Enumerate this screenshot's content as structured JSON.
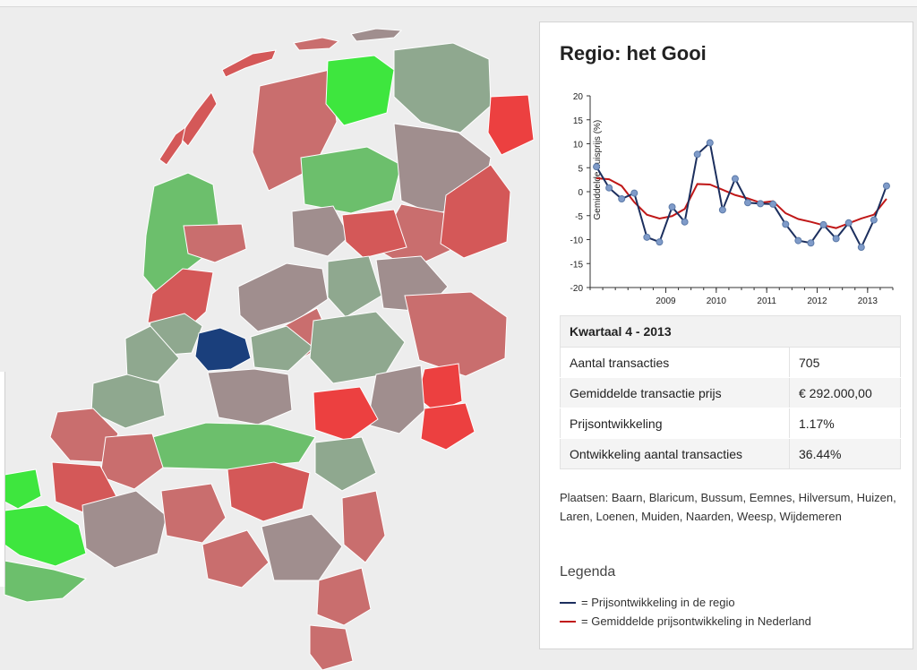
{
  "colors": {
    "decline_strong": "#d45858",
    "decline": "#c96e6e",
    "neutral": "#a08e8e",
    "grey_green": "#8fa88f",
    "rise": "#6cbf6c",
    "rise_strong": "#3ee63e",
    "drop_extreme": "#ec4040",
    "selected": "#1a3f7c",
    "regio_line": "#1c2f5e",
    "nl_line": "#c01818"
  },
  "panel": {
    "title": "Regio: het Gooi",
    "table": {
      "header": "Kwartaal 4 - 2013",
      "rows": [
        {
          "label": "Aantal transacties",
          "value": "705"
        },
        {
          "label": "Gemiddelde transactie prijs",
          "value": "€ 292.000,00"
        },
        {
          "label": "Prijsontwikkeling",
          "value": "1.17%"
        },
        {
          "label": "Ontwikkeling aantal transacties",
          "value": "36.44%"
        }
      ]
    },
    "places": "Plaatsen: Baarn, Blaricum, Bussum, Eemnes, Hilversum, Huizen, Laren, Loenen, Muiden, Naarden, Weesp, Wijdemeren",
    "legend": {
      "title": "Legenda",
      "items": [
        {
          "text": "= Prijsontwikkeling in de regio"
        },
        {
          "text": "= Gemiddelde prijsontwikkeling in Nederland"
        }
      ]
    }
  },
  "chart_data": {
    "type": "line",
    "ylabel": "Gemiddelde huisprijs (%)",
    "ylim": [
      -20,
      20
    ],
    "yticks": [
      20,
      15,
      10,
      5,
      0,
      -5,
      -10,
      -15,
      -20
    ],
    "xlim": [
      2008.0,
      2014.0
    ],
    "xticks": [
      2009,
      2010,
      2011,
      2012,
      2013
    ],
    "grid": false,
    "series": [
      {
        "key": "regio",
        "x": [
          2008.0,
          2008.25,
          2008.5,
          2008.75,
          2009.0,
          2009.25,
          2009.5,
          2009.75,
          2010.0,
          2010.25,
          2010.5,
          2010.75,
          2011.0,
          2011.25,
          2011.5,
          2011.75,
          2012.0,
          2012.25,
          2012.5,
          2012.75,
          2013.0,
          2013.25,
          2013.5,
          2013.75
        ],
        "values": [
          5.2,
          0.8,
          -1.5,
          -0.3,
          -9.5,
          -10.5,
          -3.2,
          -6.3,
          7.8,
          10.2,
          -3.8,
          2.7,
          -2.3,
          -2.5,
          -2.6,
          -6.8,
          -10.2,
          -10.7,
          -6.9,
          -9.8,
          -6.5,
          -11.6,
          -5.9,
          1.2
        ]
      },
      {
        "key": "nl",
        "x": [
          2008.0,
          2008.25,
          2008.5,
          2008.75,
          2009.0,
          2009.25,
          2009.5,
          2009.75,
          2010.0,
          2010.25,
          2010.5,
          2010.75,
          2011.0,
          2011.25,
          2011.5,
          2011.75,
          2012.0,
          2012.25,
          2012.5,
          2012.75,
          2013.0,
          2013.25,
          2013.5,
          2013.75
        ],
        "values": [
          2.8,
          2.6,
          1.2,
          -2.2,
          -4.8,
          -5.6,
          -5.1,
          -3.6,
          1.6,
          1.5,
          0.4,
          -0.7,
          -1.4,
          -2.3,
          -2.0,
          -4.5,
          -5.7,
          -6.3,
          -7.0,
          -7.6,
          -6.6,
          -5.6,
          -4.8,
          -1.5
        ]
      }
    ]
  }
}
